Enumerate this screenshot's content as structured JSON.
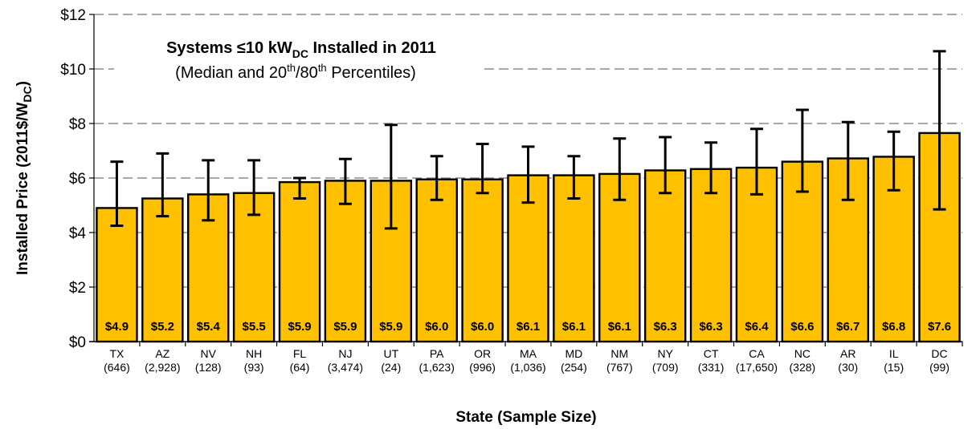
{
  "chart_data": {
    "type": "bar",
    "title_main": "Systems ≤10 kW",
    "title_main_sub": "DC",
    "title_main_tail": " Installed in 2011",
    "subtitle_pre": "(Median and 20",
    "subtitle_sup1": "th",
    "subtitle_mid": "/80",
    "subtitle_sup2": "th",
    "subtitle_post": " Percentiles)",
    "ylabel_pre": "Installed Price (2011$/W",
    "ylabel_sub": "DC",
    "ylabel_post": ")",
    "xlabel": "State (Sample Size)",
    "ylim": [
      0,
      12
    ],
    "yticks": [
      "$0",
      "$2",
      "$4",
      "$6",
      "$8",
      "$10",
      "$12"
    ],
    "grid": "horizontal dashed",
    "bar_color": "#FFC000",
    "categories": [
      {
        "state": "TX",
        "n": "(646)"
      },
      {
        "state": "AZ",
        "n": "(2,928)"
      },
      {
        "state": "NV",
        "n": "(128)"
      },
      {
        "state": "NH",
        "n": "(93)"
      },
      {
        "state": "FL",
        "n": "(64)"
      },
      {
        "state": "NJ",
        "n": "(3,474)"
      },
      {
        "state": "UT",
        "n": "(24)"
      },
      {
        "state": "PA",
        "n": "(1,623)"
      },
      {
        "state": "OR",
        "n": "(996)"
      },
      {
        "state": "MA",
        "n": "(1,036)"
      },
      {
        "state": "MD",
        "n": "(254)"
      },
      {
        "state": "NM",
        "n": "(767)"
      },
      {
        "state": "NY",
        "n": "(709)"
      },
      {
        "state": "CT",
        "n": "(331)"
      },
      {
        "state": "CA",
        "n": "(17,650)"
      },
      {
        "state": "NC",
        "n": "(328)"
      },
      {
        "state": "AR",
        "n": "(30)"
      },
      {
        "state": "IL",
        "n": "(15)"
      },
      {
        "state": "DC",
        "n": "(99)"
      }
    ],
    "series": [
      {
        "values": [
          4.9,
          5.25,
          5.4,
          5.45,
          5.85,
          5.9,
          5.9,
          5.95,
          5.95,
          6.1,
          6.1,
          6.15,
          6.28,
          6.33,
          6.38,
          6.6,
          6.72,
          6.78,
          7.65
        ],
        "data_labels": [
          "$4.9",
          "$5.2",
          "$5.4",
          "$5.5",
          "$5.9",
          "$5.9",
          "$5.9",
          "$6.0",
          "$6.0",
          "$6.1",
          "$6.1",
          "$6.1",
          "$6.3",
          "$6.3",
          "$6.4",
          "$6.6",
          "$6.7",
          "$6.8",
          "$7.6"
        ],
        "p20": [
          4.25,
          4.6,
          4.45,
          4.65,
          5.25,
          5.05,
          4.15,
          5.2,
          5.45,
          5.1,
          5.25,
          5.2,
          5.45,
          5.45,
          5.4,
          5.5,
          5.2,
          5.55,
          4.85
        ],
        "p80": [
          6.6,
          6.9,
          6.65,
          6.65,
          6.0,
          6.7,
          7.95,
          6.8,
          7.25,
          7.15,
          6.8,
          7.45,
          7.5,
          7.3,
          7.8,
          8.5,
          8.05,
          7.7,
          10.65
        ]
      }
    ]
  }
}
